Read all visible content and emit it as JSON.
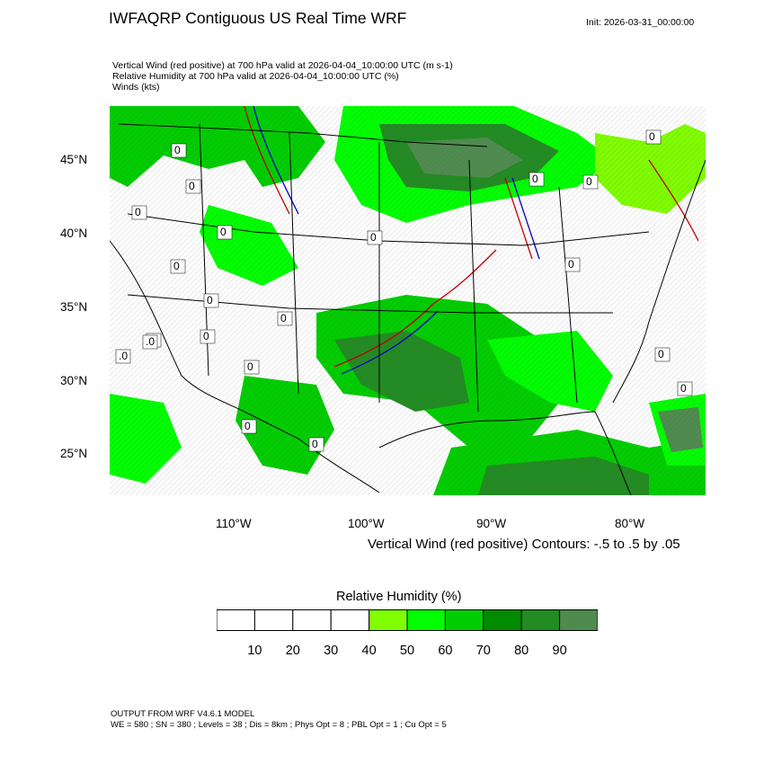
{
  "header": {
    "title": "IWFAQRP Contiguous US Real Time WRF",
    "init": "Init: 2026-03-31_00:00:00",
    "subtitles": [
      "Vertical Wind (red positive) at 700 hPa valid at 2026-04-04_10:00:00 UTC   (m s-1)",
      "Relative Humidity at 700 hPa valid at 2026-04-04_10:00:00 UTC   (%)",
      "Winds   (kts)"
    ]
  },
  "map": {
    "lat_labels": [
      "45°N",
      "40°N",
      "35°N",
      "30°N",
      "25°N"
    ],
    "lon_labels": [
      "110°W",
      "100°W",
      "90°W",
      "80°W"
    ],
    "lat_values": [
      45,
      40,
      35,
      30,
      25
    ],
    "lon_values": [
      -110,
      -100,
      -90,
      -80
    ],
    "extent": {
      "lon": [
        -120,
        -75
      ],
      "lat": [
        22,
        48.5
      ]
    },
    "contour_note": "Vertical Wind (red positive) Contours: -.5 to .5 by .05",
    "contour_labels": [
      "0",
      "0",
      "0",
      "0",
      "0",
      "0",
      "0",
      "0",
      "0",
      "0",
      ".0",
      ".0",
      "0",
      "0",
      "0",
      "0",
      "0",
      "0",
      "0",
      "0",
      "0"
    ]
  },
  "colorbar": {
    "title": "Relative Humidity  (%)",
    "labels": [
      "10",
      "20",
      "30",
      "40",
      "50",
      "60",
      "70",
      "80",
      "90"
    ],
    "colors": [
      "#ffffff",
      "#ffffff",
      "#ffffff",
      "#ffffff",
      "#80ff00",
      "#00ff00",
      "#00cd00",
      "#008b00",
      "#228b22",
      "#4f8b4f"
    ]
  },
  "footer": {
    "line1": "OUTPUT FROM WRF V4.6.1 MODEL",
    "line2": "WE = 580 ; SN = 380 ; Levels = 38 ; Dis = 8km ; Phys Opt = 8 ; PBL Opt = 1 ; Cu Opt = 5"
  }
}
